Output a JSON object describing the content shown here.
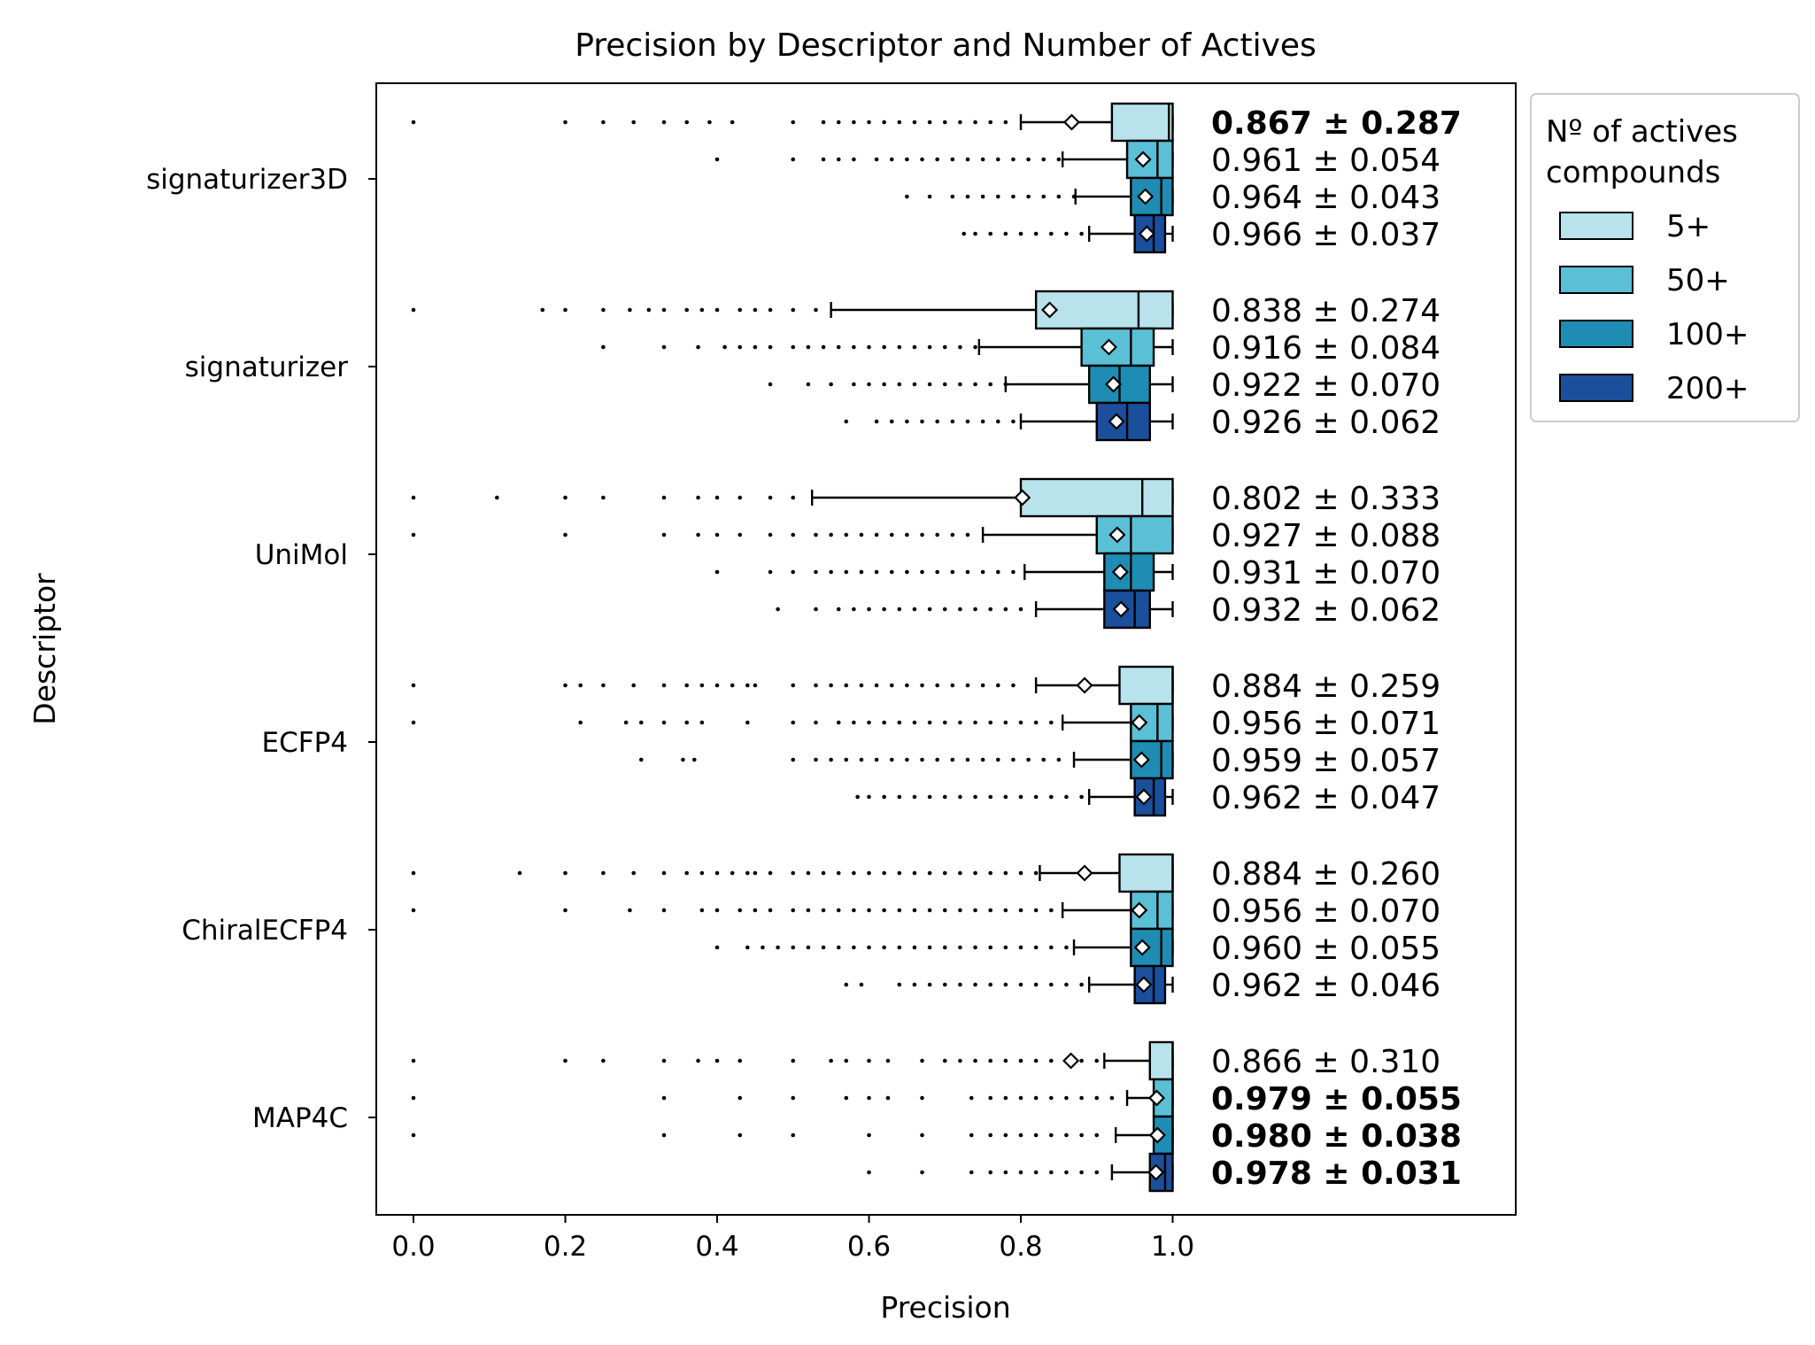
{
  "chart_data": {
    "type": "boxplot-horizontal",
    "title": "Precision by Descriptor and Number of Actives",
    "xlabel": "Precision",
    "ylabel": "Descriptor",
    "xlim": [
      -0.05,
      1.45
    ],
    "xticks": [
      "0.0",
      "0.2",
      "0.4",
      "0.6",
      "0.8",
      "1.0"
    ],
    "xtick_values": [
      0.0,
      0.2,
      0.4,
      0.6,
      0.8,
      1.0
    ],
    "grid": false,
    "legend": {
      "title_lines": [
        "Nº of actives",
        "compounds"
      ],
      "placement": "outside-top-right",
      "entries": [
        {
          "label": "5+",
          "color": "#b8e3ec"
        },
        {
          "label": "50+",
          "color": "#5bbfd6"
        },
        {
          "label": "100+",
          "color": "#1f8db3"
        },
        {
          "label": "200+",
          "color": "#1b4f9c"
        }
      ]
    },
    "groups": [
      {
        "name": "signaturizer3D",
        "boxes": [
          {
            "series": "5+",
            "whisker_low": 0.8,
            "q1": 0.92,
            "median": 0.995,
            "q3": 1.0,
            "whisker_high": 1.0,
            "mean": 0.867,
            "outliers": [
              0.0,
              0.2,
              0.25,
              0.29,
              0.33,
              0.36,
              0.39,
              0.42,
              0.5,
              0.54,
              0.56,
              0.58,
              0.6,
              0.62,
              0.64,
              0.66,
              0.68,
              0.7,
              0.72,
              0.74,
              0.76,
              0.78
            ],
            "label": "0.867 ± 0.287",
            "bold": true
          },
          {
            "series": "50+",
            "whisker_low": 0.855,
            "q1": 0.94,
            "median": 0.98,
            "q3": 1.0,
            "whisker_high": 1.0,
            "mean": 0.961,
            "outliers": [
              0.4,
              0.5,
              0.54,
              0.56,
              0.58,
              0.61,
              0.63,
              0.65,
              0.67,
              0.69,
              0.71,
              0.73,
              0.75,
              0.77,
              0.79,
              0.81,
              0.83,
              0.85
            ],
            "label": "0.961 ± 0.054",
            "bold": false
          },
          {
            "series": "100+",
            "whisker_low": 0.872,
            "q1": 0.945,
            "median": 0.985,
            "q3": 1.0,
            "whisker_high": 1.0,
            "mean": 0.964,
            "outliers": [
              0.65,
              0.68,
              0.71,
              0.73,
              0.75,
              0.77,
              0.79,
              0.81,
              0.83,
              0.85,
              0.87
            ],
            "label": "0.964 ± 0.043",
            "bold": false
          },
          {
            "series": "200+",
            "whisker_low": 0.89,
            "q1": 0.95,
            "median": 0.975,
            "q3": 0.99,
            "whisker_high": 1.0,
            "mean": 0.966,
            "outliers": [
              0.725,
              0.74,
              0.76,
              0.78,
              0.8,
              0.82,
              0.84,
              0.86,
              0.88
            ],
            "label": "0.966 ± 0.037",
            "bold": false
          }
        ]
      },
      {
        "name": "signaturizer",
        "boxes": [
          {
            "series": "5+",
            "whisker_low": 0.55,
            "q1": 0.82,
            "median": 0.955,
            "q3": 1.0,
            "whisker_high": 1.0,
            "mean": 0.838,
            "outliers": [
              0.0,
              0.17,
              0.2,
              0.25,
              0.285,
              0.31,
              0.33,
              0.36,
              0.38,
              0.4,
              0.43,
              0.45,
              0.47,
              0.5,
              0.53
            ],
            "label": "0.838 ± 0.274",
            "bold": false
          },
          {
            "series": "50+",
            "whisker_low": 0.745,
            "q1": 0.88,
            "median": 0.945,
            "q3": 0.975,
            "whisker_high": 1.0,
            "mean": 0.916,
            "outliers": [
              0.25,
              0.33,
              0.375,
              0.41,
              0.43,
              0.45,
              0.47,
              0.5,
              0.52,
              0.54,
              0.56,
              0.58,
              0.6,
              0.62,
              0.64,
              0.66,
              0.68,
              0.7,
              0.72,
              0.74
            ],
            "label": "0.916 ± 0.084",
            "bold": false
          },
          {
            "series": "100+",
            "whisker_low": 0.78,
            "q1": 0.89,
            "median": 0.93,
            "q3": 0.97,
            "whisker_high": 1.0,
            "mean": 0.922,
            "outliers": [
              0.47,
              0.52,
              0.55,
              0.58,
              0.6,
              0.62,
              0.64,
              0.66,
              0.68,
              0.7,
              0.72,
              0.74,
              0.76,
              0.78
            ],
            "label": "0.922 ± 0.070",
            "bold": false
          },
          {
            "series": "200+",
            "whisker_low": 0.8,
            "q1": 0.9,
            "median": 0.94,
            "q3": 0.97,
            "whisker_high": 1.0,
            "mean": 0.926,
            "outliers": [
              0.57,
              0.61,
              0.63,
              0.65,
              0.67,
              0.69,
              0.71,
              0.73,
              0.75,
              0.77,
              0.79
            ],
            "label": "0.926 ± 0.062",
            "bold": false
          }
        ]
      },
      {
        "name": "UniMol",
        "boxes": [
          {
            "series": "5+",
            "whisker_low": 0.525,
            "q1": 0.8,
            "median": 0.96,
            "q3": 1.0,
            "whisker_high": 1.0,
            "mean": 0.802,
            "outliers": [
              0.0,
              0.11,
              0.2,
              0.25,
              0.33,
              0.375,
              0.4,
              0.43,
              0.47,
              0.5
            ],
            "label": "0.802 ± 0.333",
            "bold": false
          },
          {
            "series": "50+",
            "whisker_low": 0.75,
            "q1": 0.9,
            "median": 0.945,
            "q3": 1.0,
            "whisker_high": 1.0,
            "mean": 0.927,
            "outliers": [
              0.0,
              0.2,
              0.33,
              0.375,
              0.4,
              0.43,
              0.47,
              0.5,
              0.53,
              0.55,
              0.57,
              0.59,
              0.61,
              0.63,
              0.65,
              0.67,
              0.69,
              0.71,
              0.73
            ],
            "label": "0.927 ± 0.088",
            "bold": false
          },
          {
            "series": "100+",
            "whisker_low": 0.805,
            "q1": 0.91,
            "median": 0.945,
            "q3": 0.975,
            "whisker_high": 1.0,
            "mean": 0.931,
            "outliers": [
              0.4,
              0.47,
              0.5,
              0.53,
              0.55,
              0.57,
              0.59,
              0.61,
              0.63,
              0.65,
              0.67,
              0.69,
              0.71,
              0.73,
              0.75,
              0.77,
              0.79
            ],
            "label": "0.931 ± 0.070",
            "bold": false
          },
          {
            "series": "200+",
            "whisker_low": 0.82,
            "q1": 0.91,
            "median": 0.95,
            "q3": 0.97,
            "whisker_high": 1.0,
            "mean": 0.932,
            "outliers": [
              0.48,
              0.53,
              0.56,
              0.58,
              0.6,
              0.62,
              0.64,
              0.66,
              0.68,
              0.7,
              0.72,
              0.74,
              0.76,
              0.78,
              0.8
            ],
            "label": "0.932 ± 0.062",
            "bold": false
          }
        ]
      },
      {
        "name": "ECFP4",
        "boxes": [
          {
            "series": "5+",
            "whisker_low": 0.82,
            "q1": 0.93,
            "median": 1.0,
            "q3": 1.0,
            "whisker_high": 1.0,
            "mean": 0.884,
            "outliers": [
              0.0,
              0.2,
              0.22,
              0.25,
              0.29,
              0.33,
              0.36,
              0.38,
              0.4,
              0.42,
              0.44,
              0.45,
              0.5,
              0.53,
              0.55,
              0.57,
              0.59,
              0.61,
              0.63,
              0.65,
              0.67,
              0.69,
              0.71,
              0.73,
              0.75,
              0.77,
              0.79
            ],
            "label": "0.884 ± 0.259",
            "bold": false
          },
          {
            "series": "50+",
            "whisker_low": 0.855,
            "q1": 0.945,
            "median": 0.98,
            "q3": 1.0,
            "whisker_high": 1.0,
            "mean": 0.956,
            "outliers": [
              0.0,
              0.22,
              0.28,
              0.3,
              0.33,
              0.36,
              0.38,
              0.44,
              0.5,
              0.53,
              0.56,
              0.58,
              0.6,
              0.62,
              0.64,
              0.66,
              0.68,
              0.7,
              0.72,
              0.74,
              0.76,
              0.78,
              0.8,
              0.82,
              0.84
            ],
            "label": "0.956 ± 0.071",
            "bold": false
          },
          {
            "series": "100+",
            "whisker_low": 0.87,
            "q1": 0.945,
            "median": 0.985,
            "q3": 1.0,
            "whisker_high": 1.0,
            "mean": 0.959,
            "outliers": [
              0.3,
              0.355,
              0.37,
              0.5,
              0.53,
              0.55,
              0.57,
              0.59,
              0.61,
              0.63,
              0.65,
              0.67,
              0.69,
              0.71,
              0.73,
              0.75,
              0.77,
              0.79,
              0.81,
              0.83,
              0.85
            ],
            "label": "0.959 ± 0.057",
            "bold": false
          },
          {
            "series": "200+",
            "whisker_low": 0.89,
            "q1": 0.95,
            "median": 0.975,
            "q3": 0.99,
            "whisker_high": 1.0,
            "mean": 0.962,
            "outliers": [
              0.585,
              0.6,
              0.62,
              0.64,
              0.66,
              0.68,
              0.7,
              0.72,
              0.74,
              0.76,
              0.78,
              0.8,
              0.82,
              0.84,
              0.86,
              0.88
            ],
            "label": "0.962 ± 0.047",
            "bold": false
          }
        ]
      },
      {
        "name": "ChiralECFP4",
        "boxes": [
          {
            "series": "5+",
            "whisker_low": 0.825,
            "q1": 0.93,
            "median": 1.0,
            "q3": 1.0,
            "whisker_high": 1.0,
            "mean": 0.884,
            "outliers": [
              0.0,
              0.14,
              0.2,
              0.25,
              0.29,
              0.33,
              0.36,
              0.38,
              0.4,
              0.42,
              0.44,
              0.45,
              0.47,
              0.5,
              0.52,
              0.54,
              0.56,
              0.58,
              0.6,
              0.62,
              0.64,
              0.66,
              0.68,
              0.7,
              0.72,
              0.74,
              0.76,
              0.78,
              0.8,
              0.82
            ],
            "label": "0.884 ± 0.260",
            "bold": false
          },
          {
            "series": "50+",
            "whisker_low": 0.855,
            "q1": 0.945,
            "median": 0.98,
            "q3": 1.0,
            "whisker_high": 1.0,
            "mean": 0.956,
            "outliers": [
              0.0,
              0.2,
              0.285,
              0.33,
              0.38,
              0.4,
              0.43,
              0.45,
              0.47,
              0.5,
              0.52,
              0.54,
              0.56,
              0.58,
              0.6,
              0.62,
              0.64,
              0.66,
              0.68,
              0.7,
              0.72,
              0.74,
              0.76,
              0.78,
              0.8,
              0.82,
              0.84
            ],
            "label": "0.956 ± 0.070",
            "bold": false
          },
          {
            "series": "100+",
            "whisker_low": 0.87,
            "q1": 0.945,
            "median": 0.985,
            "q3": 1.0,
            "whisker_high": 1.0,
            "mean": 0.96,
            "outliers": [
              0.4,
              0.44,
              0.46,
              0.48,
              0.5,
              0.52,
              0.54,
              0.56,
              0.58,
              0.6,
              0.62,
              0.64,
              0.66,
              0.68,
              0.7,
              0.72,
              0.74,
              0.76,
              0.78,
              0.8,
              0.82,
              0.84,
              0.86
            ],
            "label": "0.960 ± 0.055",
            "bold": false
          },
          {
            "series": "200+",
            "whisker_low": 0.89,
            "q1": 0.95,
            "median": 0.975,
            "q3": 0.99,
            "whisker_high": 1.0,
            "mean": 0.962,
            "outliers": [
              0.57,
              0.59,
              0.64,
              0.66,
              0.68,
              0.7,
              0.72,
              0.74,
              0.76,
              0.78,
              0.8,
              0.82,
              0.84,
              0.86,
              0.88
            ],
            "label": "0.962 ± 0.046",
            "bold": false
          }
        ]
      },
      {
        "name": "MAP4C",
        "boxes": [
          {
            "series": "5+",
            "whisker_low": 0.91,
            "q1": 0.97,
            "median": 1.0,
            "q3": 1.0,
            "whisker_high": 1.0,
            "mean": 0.866,
            "outliers": [
              0.0,
              0.2,
              0.25,
              0.33,
              0.375,
              0.4,
              0.43,
              0.5,
              0.55,
              0.57,
              0.6,
              0.625,
              0.67,
              0.7,
              0.72,
              0.74,
              0.76,
              0.78,
              0.8,
              0.82,
              0.84,
              0.86,
              0.88,
              0.9
            ],
            "label": "0.866 ± 0.310",
            "bold": false
          },
          {
            "series": "50+",
            "whisker_low": 0.94,
            "q1": 0.975,
            "median": 1.0,
            "q3": 1.0,
            "whisker_high": 1.0,
            "mean": 0.979,
            "outliers": [
              0.0,
              0.33,
              0.43,
              0.5,
              0.57,
              0.6,
              0.625,
              0.67,
              0.735,
              0.76,
              0.78,
              0.8,
              0.82,
              0.84,
              0.86,
              0.88,
              0.9,
              0.92
            ],
            "label": "0.979 ± 0.055",
            "bold": true
          },
          {
            "series": "100+",
            "whisker_low": 0.925,
            "q1": 0.975,
            "median": 1.0,
            "q3": 1.0,
            "whisker_high": 1.0,
            "mean": 0.98,
            "outliers": [
              0.0,
              0.33,
              0.43,
              0.5,
              0.6,
              0.67,
              0.735,
              0.76,
              0.78,
              0.8,
              0.82,
              0.84,
              0.86,
              0.88,
              0.9
            ],
            "label": "0.980 ± 0.038",
            "bold": true
          },
          {
            "series": "200+",
            "whisker_low": 0.92,
            "q1": 0.97,
            "median": 0.99,
            "q3": 1.0,
            "whisker_high": 1.0,
            "mean": 0.978,
            "outliers": [
              0.6,
              0.67,
              0.735,
              0.76,
              0.78,
              0.8,
              0.82,
              0.84,
              0.86,
              0.88,
              0.9
            ],
            "label": "0.978 ± 0.031",
            "bold": true
          }
        ]
      }
    ]
  }
}
